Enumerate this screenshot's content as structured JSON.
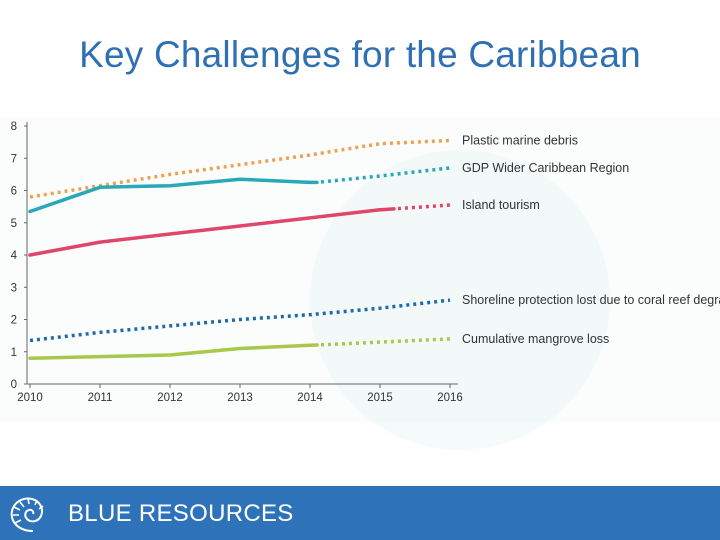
{
  "slide": {
    "title": "Key Challenges for the Caribbean"
  },
  "footer": {
    "brand": "BLUE RESOURCES",
    "bg_color": "#2e73b9"
  },
  "chart_data": {
    "type": "line",
    "title": "",
    "xlabel": "",
    "ylabel": "",
    "x": [
      2010,
      2011,
      2012,
      2013,
      2014,
      2015,
      2016
    ],
    "ylim": [
      0,
      8
    ],
    "yticks": [
      0,
      1,
      2,
      3,
      4,
      5,
      6,
      7,
      8
    ],
    "grid": false,
    "legend": "right",
    "series": [
      {
        "name": "Plastic marine debris",
        "color": "#f0a050",
        "x": [
          2010,
          2011,
          2012,
          2013,
          2014,
          2015,
          2016
        ],
        "y": [
          5.8,
          6.15,
          6.5,
          6.8,
          7.1,
          7.45,
          7.55
        ],
        "solid_until": 2010
      },
      {
        "name": "GDP Wider Caribbean Region",
        "color": "#2aa7b8",
        "x": [
          2010,
          2011,
          2012,
          2013,
          2014,
          2014.1,
          2015,
          2016
        ],
        "y": [
          5.35,
          6.1,
          6.15,
          6.35,
          6.25,
          6.25,
          6.45,
          6.7
        ],
        "solid_until": 2014.1
      },
      {
        "name": "Island tourism",
        "color": "#e0456a",
        "x": [
          2010,
          2011,
          2012,
          2013,
          2014,
          2015,
          2016
        ],
        "y": [
          4.0,
          4.4,
          4.65,
          4.9,
          5.15,
          5.4,
          5.55
        ],
        "solid_until": 2015.2
      },
      {
        "name": "Shoreline protection lost due to coral reef degradation",
        "color": "#1e6aaa",
        "x": [
          2010,
          2011,
          2012,
          2013,
          2014,
          2015,
          2016
        ],
        "y": [
          1.35,
          1.6,
          1.8,
          2.0,
          2.15,
          2.35,
          2.6
        ],
        "solid_until": 2010
      },
      {
        "name": "Cumulative mangrove loss",
        "color": "#a8c84a",
        "x": [
          2010,
          2011,
          2012,
          2013,
          2014,
          2015,
          2016
        ],
        "y": [
          0.8,
          0.85,
          0.9,
          1.1,
          1.2,
          1.3,
          1.4
        ],
        "solid_until": 2014.1
      }
    ]
  }
}
